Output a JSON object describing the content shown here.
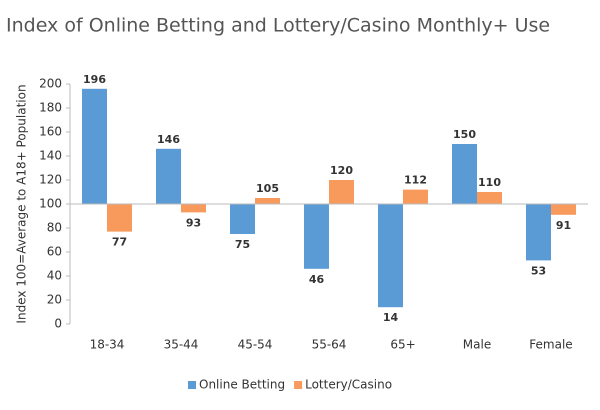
{
  "chart_data": {
    "type": "bar",
    "title": "Index of Online Betting and Lottery/Casino Monthly+ Use",
    "y_label": "Index 100=Average to A18+ Population",
    "categories": [
      "18-34",
      "35-44",
      "45-54",
      "55-64",
      "65+",
      "Male",
      "Female"
    ],
    "series": [
      {
        "name": "Online Betting",
        "color": "#5b9bd5",
        "values": [
          196,
          146,
          75,
          46,
          14,
          150,
          53
        ]
      },
      {
        "name": "Lottery/Casino",
        "color": "#f79a5b",
        "values": [
          77,
          93,
          105,
          120,
          112,
          110,
          91
        ]
      }
    ],
    "bar_base": 100,
    "ylim": [
      0,
      200
    ],
    "yticks": [
      0,
      20,
      40,
      60,
      80,
      100,
      120,
      140,
      160,
      180,
      200
    ],
    "legend": "bottom"
  }
}
